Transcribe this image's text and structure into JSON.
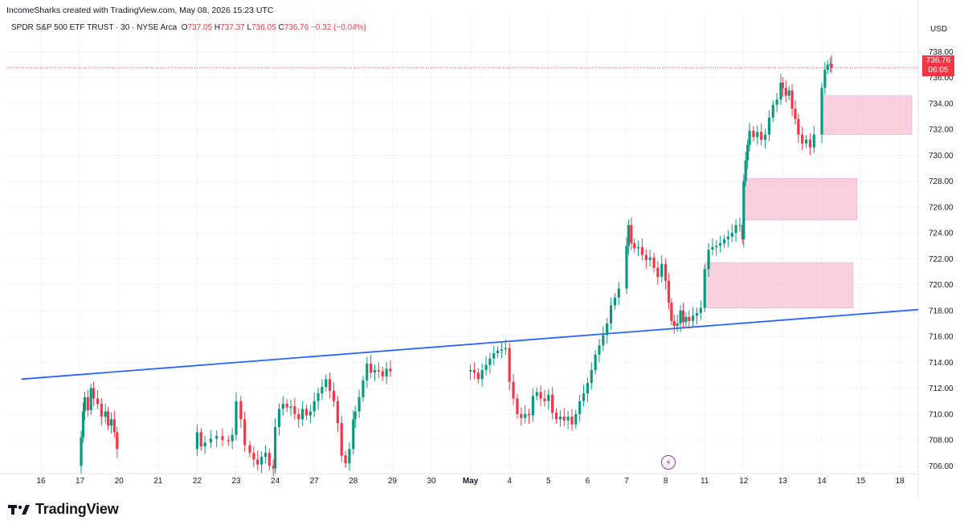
{
  "attribution": "IncomeSharks created with TradingView.com, May 08, 2026 15:23 UTC",
  "symbol_info": {
    "name": "SPDR S&P 500 ETF TRUST · 30 · NYSE Arca",
    "open_label": "O",
    "open": "737.05",
    "high_label": "H",
    "high": "737.37",
    "low_label": "L",
    "low": "736.05",
    "close_label": "C",
    "close": "736.76",
    "change": "−0.32 (−0.04%)"
  },
  "currency": "USD",
  "last_price_tag": {
    "price": "736.76",
    "countdown": "06:05"
  },
  "logo_text": "TradingView",
  "icons": {
    "alert": "lightning-alert-icon",
    "logo": "tradingview-logo-icon"
  },
  "colors": {
    "up": "#089981",
    "down": "#f23645",
    "trendline": "#2962ff",
    "zone": "#f8bbd0"
  },
  "chart_data": {
    "type": "candlestick",
    "y_ticks": [
      "706.00",
      "708.00",
      "710.00",
      "712.00",
      "714.00",
      "716.00",
      "718.00",
      "720.00",
      "722.00",
      "724.00",
      "726.00",
      "728.00",
      "730.00",
      "732.00",
      "734.00",
      "736.00",
      "738.00"
    ],
    "x_ticks": [
      "16",
      "17",
      "20",
      "21",
      "22",
      "23",
      "24",
      "27",
      "28",
      "29",
      "30",
      "May",
      "4",
      "5",
      "6",
      "7",
      "8",
      "11",
      "12",
      "13",
      "14",
      "15",
      "18"
    ],
    "ylim": [
      705.4,
      739.2
    ],
    "price_series": [
      [
        17.0,
        706.0
      ],
      [
        17.03,
        708.2
      ],
      [
        17.08,
        710.2
      ],
      [
        17.12,
        711.3
      ],
      [
        17.2,
        710.3
      ],
      [
        17.28,
        712.0
      ],
      [
        17.35,
        711.2
      ],
      [
        17.45,
        710.8
      ],
      [
        17.55,
        709.8
      ],
      [
        17.65,
        710.2
      ],
      [
        17.72,
        709.1
      ],
      [
        17.8,
        709.6
      ],
      [
        17.88,
        708.6
      ],
      [
        17.95,
        707.3
      ],
      [
        20.0,
        708.6
      ],
      [
        20.1,
        707.5
      ],
      [
        20.2,
        707.8
      ],
      [
        20.35,
        708.1
      ],
      [
        20.5,
        708.3
      ],
      [
        20.65,
        708.0
      ],
      [
        20.8,
        707.9
      ],
      [
        20.9,
        708.4
      ],
      [
        21.0,
        711.0
      ],
      [
        21.12,
        709.6
      ],
      [
        21.22,
        707.6
      ],
      [
        21.35,
        707.0
      ],
      [
        21.45,
        706.5
      ],
      [
        21.55,
        706.1
      ],
      [
        21.65,
        706.7
      ],
      [
        21.75,
        707.0
      ],
      [
        21.85,
        706.0
      ],
      [
        21.95,
        705.8
      ],
      [
        22.0,
        709.0
      ],
      [
        22.1,
        710.4
      ],
      [
        22.2,
        710.8
      ],
      [
        22.3,
        710.5
      ],
      [
        22.4,
        710.6
      ],
      [
        22.5,
        710.0
      ],
      [
        22.6,
        709.6
      ],
      [
        22.7,
        710.4
      ],
      [
        22.8,
        709.9
      ],
      [
        22.9,
        710.2
      ],
      [
        23.0,
        711.0
      ],
      [
        23.1,
        711.6
      ],
      [
        23.2,
        712.1
      ],
      [
        23.3,
        712.7
      ],
      [
        23.4,
        711.8
      ],
      [
        23.5,
        711.0
      ],
      [
        23.6,
        709.3
      ],
      [
        23.7,
        706.8
      ],
      [
        23.8,
        706.2
      ],
      [
        23.9,
        707.3
      ],
      [
        24.0,
        709.6
      ],
      [
        24.05,
        710.2
      ],
      [
        24.15,
        711.3
      ],
      [
        24.25,
        712.6
      ],
      [
        24.35,
        713.9
      ],
      [
        24.45,
        713.2
      ],
      [
        24.55,
        713.4
      ],
      [
        24.65,
        713.3
      ],
      [
        24.75,
        712.9
      ],
      [
        24.85,
        713.5
      ],
      [
        24.95,
        713.3
      ],
      [
        27.0,
        713.4
      ],
      [
        27.1,
        713.2
      ],
      [
        27.2,
        712.7
      ],
      [
        27.3,
        713.4
      ],
      [
        27.4,
        713.8
      ],
      [
        27.5,
        714.3
      ],
      [
        27.6,
        714.7
      ],
      [
        27.7,
        714.9
      ],
      [
        27.8,
        715.0
      ],
      [
        27.9,
        715.1
      ],
      [
        28.0,
        712.5
      ],
      [
        28.1,
        711.2
      ],
      [
        28.2,
        710.0
      ],
      [
        28.3,
        709.7
      ],
      [
        28.4,
        710.0
      ],
      [
        28.5,
        709.9
      ],
      [
        28.6,
        711.4
      ],
      [
        28.7,
        711.7
      ],
      [
        28.8,
        711.2
      ],
      [
        28.9,
        711.0
      ],
      [
        29.0,
        711.5
      ],
      [
        29.1,
        710.1
      ],
      [
        29.2,
        709.6
      ],
      [
        29.3,
        709.8
      ],
      [
        29.4,
        709.5
      ],
      [
        29.5,
        709.8
      ],
      [
        29.6,
        709.2
      ],
      [
        29.7,
        710.0
      ],
      [
        29.8,
        711.0
      ],
      [
        29.9,
        711.6
      ],
      [
        30.0,
        712.4
      ],
      [
        30.1,
        713.4
      ],
      [
        30.2,
        714.6
      ],
      [
        30.3,
        715.3
      ],
      [
        30.4,
        716.1
      ],
      [
        30.5,
        717.0
      ],
      [
        30.6,
        718.4
      ],
      [
        30.7,
        719.0
      ],
      [
        30.8,
        719.7
      ],
      [
        31.0,
        723.0
      ],
      [
        31.05,
        724.6
      ],
      [
        31.12,
        723.2
      ],
      [
        31.2,
        722.8
      ],
      [
        31.3,
        722.9
      ],
      [
        31.4,
        722.3
      ],
      [
        31.5,
        721.9
      ],
      [
        31.6,
        722.1
      ],
      [
        31.7,
        721.3
      ],
      [
        31.8,
        720.6
      ],
      [
        31.9,
        721.6
      ],
      [
        32.0,
        720.3
      ],
      [
        32.08,
        718.6
      ],
      [
        32.15,
        717.2
      ],
      [
        32.22,
        716.8
      ],
      [
        32.3,
        717.0
      ],
      [
        32.38,
        718.0
      ],
      [
        32.45,
        717.1
      ],
      [
        32.52,
        717.5
      ],
      [
        32.6,
        717.2
      ],
      [
        32.7,
        717.6
      ],
      [
        32.8,
        717.8
      ],
      [
        32.9,
        718.2
      ],
      [
        33.0,
        721.2
      ],
      [
        33.1,
        722.7
      ],
      [
        33.2,
        722.9
      ],
      [
        33.3,
        723.0
      ],
      [
        33.4,
        723.2
      ],
      [
        33.5,
        723.5
      ],
      [
        33.6,
        723.7
      ],
      [
        33.7,
        724.0
      ],
      [
        33.8,
        724.6
      ],
      [
        33.9,
        724.6
      ],
      [
        33.97,
        723.5
      ],
      [
        34.0,
        728.0
      ],
      [
        34.05,
        729.6
      ],
      [
        34.1,
        730.8
      ],
      [
        34.15,
        731.9
      ],
      [
        34.25,
        731.4
      ],
      [
        34.35,
        731.8
      ],
      [
        34.45,
        731.2
      ],
      [
        34.55,
        731.6
      ],
      [
        34.65,
        732.9
      ],
      [
        34.75,
        733.9
      ],
      [
        34.85,
        734.3
      ],
      [
        34.95,
        735.6
      ],
      [
        35.0,
        735.2
      ],
      [
        35.08,
        734.6
      ],
      [
        35.16,
        735.0
      ],
      [
        35.24,
        733.6
      ],
      [
        35.32,
        732.8
      ],
      [
        35.4,
        731.6
      ],
      [
        35.5,
        730.9
      ],
      [
        35.6,
        731.2
      ],
      [
        35.7,
        730.6
      ],
      [
        35.8,
        731.6
      ],
      [
        36.0,
        735.2
      ],
      [
        36.08,
        736.6
      ],
      [
        36.15,
        737.0
      ],
      [
        36.22,
        737.05
      ],
      [
        36.25,
        736.76
      ]
    ],
    "zones": [
      {
        "x_start": 36.0,
        "x_end": 38.3,
        "y_top": 734.6,
        "y_bottom": 731.6
      },
      {
        "x_start": 34.0,
        "x_end": 36.9,
        "y_top": 728.2,
        "y_bottom": 725.0
      },
      {
        "x_start": 33.0,
        "x_end": 36.8,
        "y_top": 721.7,
        "y_bottom": 718.2
      }
    ],
    "trendline": {
      "x1": 15.5,
      "y1": 712.7,
      "x2": 45.0,
      "y2": 719.6
    },
    "last_price": 736.76
  }
}
